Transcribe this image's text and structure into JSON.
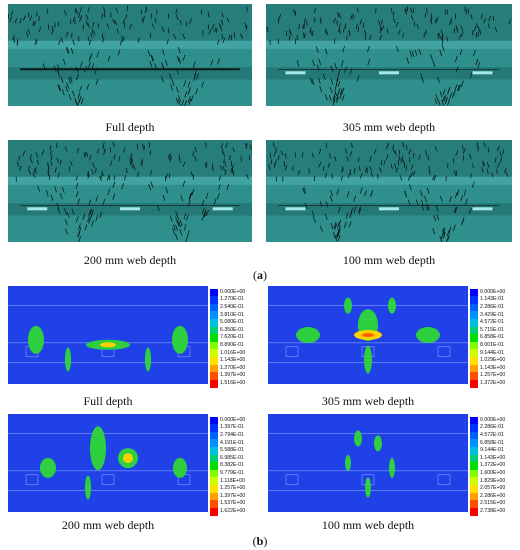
{
  "part_a": {
    "label_prefix": "(",
    "label_letter": "a",
    "label_suffix": ")",
    "panels": [
      {
        "caption": "Full depth",
        "web_line": false
      },
      {
        "caption": "305 mm web depth",
        "web_line": true
      },
      {
        "caption": "200 mm web depth",
        "web_line": true
      },
      {
        "caption": "100 mm web depth",
        "web_line": true
      }
    ],
    "colors": {
      "bg": "#2f8f8c",
      "band": "#4fb3b0",
      "deck": "#1f6f6c",
      "crack": "#0a1a1a",
      "web": "#a8e8e6"
    }
  },
  "part_b": {
    "label_prefix": "(",
    "label_letter": "b",
    "label_suffix": ")",
    "panels": [
      {
        "caption": "Full depth",
        "legend": [
          "0.000E+00",
          "1.270E-01",
          "2.540E-01",
          "3.810E-01",
          "5.080E-01",
          "6.350E-01",
          "7.620E-01",
          "8.890E-01",
          "1.016E+00",
          "1.143E+00",
          "1.270E+00",
          "1.397E+00",
          "1.516E+00"
        ]
      },
      {
        "caption": "305 mm web depth",
        "legend": [
          "0.000E+00",
          "1.143E-01",
          "2.286E-01",
          "3.429E-01",
          "4.572E-01",
          "5.715E-01",
          "6.858E-01",
          "8.001E-01",
          "9.144E-01",
          "1.029E+00",
          "1.143E+00",
          "1.257E+00",
          "1.372E+00"
        ]
      },
      {
        "caption": "200 mm web depth",
        "legend": [
          "0.000E+00",
          "1.397E-01",
          "2.794E-01",
          "4.191E-01",
          "5.588E-01",
          "6.985E-01",
          "8.382E-01",
          "9.779E-01",
          "1.118E+00",
          "1.257E+00",
          "1.397E+00",
          "1.537E+00",
          "1.622E+00"
        ]
      },
      {
        "caption": "100 mm web depth",
        "legend": [
          "0.000E+00",
          "2.286E-01",
          "4.572E-01",
          "6.858E-01",
          "9.144E-01",
          "1.143E+00",
          "1.372E+00",
          "1.600E+00",
          "1.829E+00",
          "2.057E+00",
          "2.286E+00",
          "2.515E+00",
          "2.738E+00"
        ]
      }
    ],
    "legend_colors": [
      "#0000ff",
      "#0030ff",
      "#0060ff",
      "#0090ff",
      "#00c0e0",
      "#00d070",
      "#00e000",
      "#80ff00",
      "#d0ff00",
      "#ffe000",
      "#ffa000",
      "#ff5000",
      "#ff0000"
    ],
    "plot_bg": "#2040e8"
  }
}
